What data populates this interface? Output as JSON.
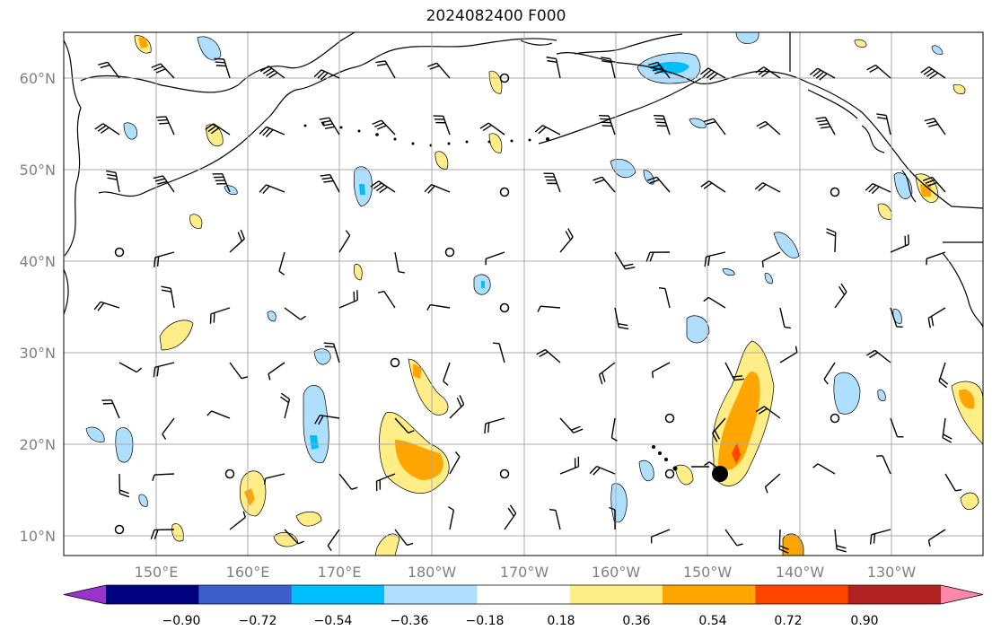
{
  "title": "2024082400 F000",
  "map": {
    "lat_labels": [
      "10°N",
      "20°N",
      "30°N",
      "40°N",
      "50°N",
      "60°N"
    ],
    "lon_labels": [
      "150°E",
      "160°E",
      "170°E",
      "180°W",
      "170°W",
      "160°W",
      "150°W",
      "140°W",
      "130°W"
    ],
    "label_color": "#808080",
    "marker": {
      "lon": -148.5,
      "lat": 17,
      "symbol": "filled-circle"
    }
  },
  "colorbar": {
    "colors": [
      "#9933cc",
      "#000080",
      "#3a5fcd",
      "#00bfff",
      "#afdfff",
      "#ffffff",
      "#ffee88",
      "#ffa500",
      "#ff4500",
      "#b22222",
      "#ff88aa"
    ],
    "tick_labels": [
      "−0.90",
      "−0.72",
      "−0.54",
      "−0.36",
      "−0.18",
      "0.18",
      "0.36",
      "0.54",
      "0.72",
      "0.90"
    ],
    "extend": "both"
  }
}
